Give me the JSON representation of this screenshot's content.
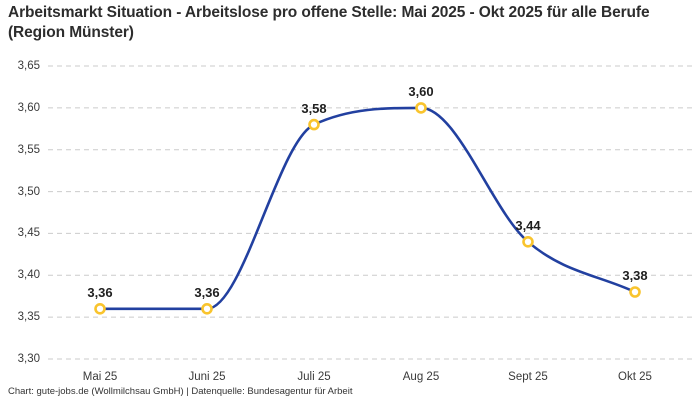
{
  "title": "Arbeitsmarkt Situation - Arbeitslose pro offene Stelle: Mai 2025 - Okt 2025 für alle Berufe (Region Münster)",
  "footer": "Chart: gute-jobs.de (Wollmilchsau GmbH) | Datenquelle: Bundesagentur für Arbeit",
  "colors": {
    "line": "#2240a0",
    "marker": "#f9c42d",
    "marker_fill": "#ffffff",
    "grid": "#cbcbcb",
    "text": "#3a3a3a",
    "value_label": "#1f1f1f",
    "background": "#ffffff"
  },
  "chart_data": {
    "type": "line",
    "title": "Arbeitsmarkt Situation - Arbeitslose pro offene Stelle: Mai 2025 - Okt 2025 für alle Berufe (Region Münster)",
    "categories": [
      "Mai 25",
      "Juni 25",
      "Juli 25",
      "Aug 25",
      "Sept 25",
      "Okt 25"
    ],
    "values": [
      3.36,
      3.36,
      3.58,
      3.6,
      3.44,
      3.38
    ],
    "value_labels": [
      "3,36",
      "3,36",
      "3,58",
      "3,60",
      "3,44",
      "3,38"
    ],
    "xlabel": "",
    "ylabel": "",
    "ylim": [
      3.3,
      3.65
    ],
    "yticks": [
      3.65,
      3.6,
      3.55,
      3.5,
      3.45,
      3.4,
      3.35,
      3.3
    ],
    "ytick_labels": [
      "3,65",
      "3,60",
      "3,55",
      "3,50",
      "3,45",
      "3,40",
      "3,35",
      "3,30"
    ],
    "grid": "horizontal-dashed",
    "legend": "none",
    "line_style": "smooth-spline",
    "marker_style": "open-circle"
  }
}
